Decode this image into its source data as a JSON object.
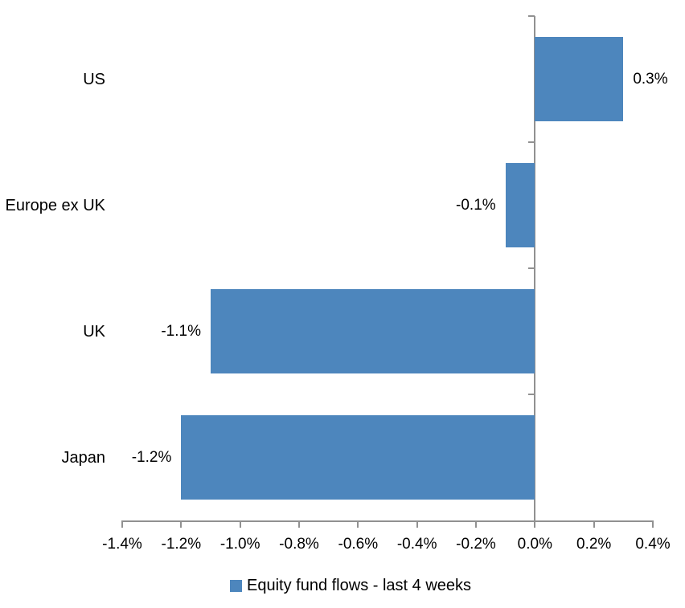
{
  "chart_data": {
    "type": "bar",
    "orientation": "horizontal",
    "title": "",
    "categories": [
      "US",
      "Europe ex UK",
      "UK",
      "Japan"
    ],
    "values": [
      0.3,
      -0.1,
      -1.1,
      -1.2
    ],
    "data_labels": [
      "0.3%",
      "-0.1%",
      "-1.1%",
      "-1.2%"
    ],
    "x_ticks": [
      -1.4,
      -1.2,
      -1.0,
      -0.8,
      -0.6,
      -0.4,
      -0.2,
      0.0,
      0.2,
      0.4
    ],
    "x_tick_labels": [
      "-1.4%",
      "-1.2%",
      "-1.0%",
      "-0.8%",
      "-0.6%",
      "-0.4%",
      "-0.2%",
      "0.0%",
      "0.2%",
      "0.4%"
    ],
    "xlim": [
      -1.4,
      0.4
    ],
    "unit": "%",
    "grid": false,
    "legend_position": "bottom",
    "legend_label": "Equity fund flows - last 4 weeks",
    "colors": {
      "bar": "#4D86BD",
      "axis": "#919191",
      "text": "#000000"
    }
  }
}
